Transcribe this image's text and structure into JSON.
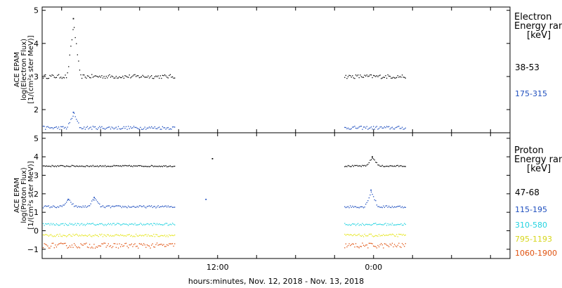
{
  "chart_data": [
    {
      "type": "scatter",
      "panel": "electron",
      "ylabel": [
        "ACE EPAM",
        "log(Electron Flux)",
        "[1/(cm²s ster MeV)]"
      ],
      "ylim": [
        1.3,
        5.1
      ],
      "yticks": [
        2,
        3,
        4,
        5
      ],
      "legend_title": [
        "Electron",
        "Energy ran",
        "[keV]"
      ],
      "series": [
        {
          "name": "38-53",
          "color": "#000000",
          "base": 3.0,
          "noise": 0.06,
          "spikes": [
            {
              "x": 0.9,
              "y": 4.75
            }
          ]
        },
        {
          "name": "175-315",
          "color": "#1f4fbf",
          "base": 1.45,
          "noise": 0.05,
          "spikes": [
            {
              "x": 0.9,
              "y": 1.92
            }
          ]
        }
      ]
    },
    {
      "type": "scatter",
      "panel": "proton",
      "ylabel": [
        "ACE EPAM",
        "log(Proton Flux)",
        "[1/(cm²s ster MeV)]"
      ],
      "ylim": [
        -1.5,
        5.3
      ],
      "yticks": [
        -1,
        0,
        1,
        2,
        3,
        4,
        5
      ],
      "legend_title": [
        "Proton",
        "Energy ran",
        "[keV]"
      ],
      "series": [
        {
          "name": "47-68",
          "color": "#000000",
          "base": 3.5,
          "noise": 0.04,
          "spikes": [
            {
              "x": 11.6,
              "y": 3.9
            },
            {
              "x": 23.9,
              "y": 4.0
            }
          ]
        },
        {
          "name": "115-195",
          "color": "#1f4fbf",
          "base": 1.3,
          "noise": 0.06,
          "spikes": [
            {
              "x": 0.5,
              "y": 1.7
            },
            {
              "x": 2.5,
              "y": 1.8
            },
            {
              "x": 11.1,
              "y": 1.7
            },
            {
              "x": 23.8,
              "y": 2.2
            }
          ]
        },
        {
          "name": "310-580",
          "color": "#22d3e0",
          "base": 0.35,
          "noise": 0.06,
          "spikes": []
        },
        {
          "name": "795-1193",
          "color": "#e5e51a",
          "base": -0.25,
          "noise": 0.07,
          "spikes": []
        },
        {
          "name": "1060-1900",
          "color": "#e0520f",
          "base": -0.8,
          "noise": 0.14,
          "spikes": []
        }
      ]
    }
  ],
  "x_axis": {
    "label": "hours:minutes, Nov. 12, 2018 - Nov. 13, 2018",
    "xlim": [
      -1.5,
      34.5
    ],
    "tick_labels": [
      {
        "x": 12,
        "label": "12:00"
      },
      {
        "x": 24,
        "label": "0:00"
      }
    ],
    "minor_ticks": [
      0,
      3,
      6,
      9,
      12,
      15,
      18,
      21,
      24,
      27,
      30,
      33
    ],
    "segments": [
      [
        -1.5,
        8.7
      ],
      [
        21.7,
        26.5
      ]
    ]
  }
}
